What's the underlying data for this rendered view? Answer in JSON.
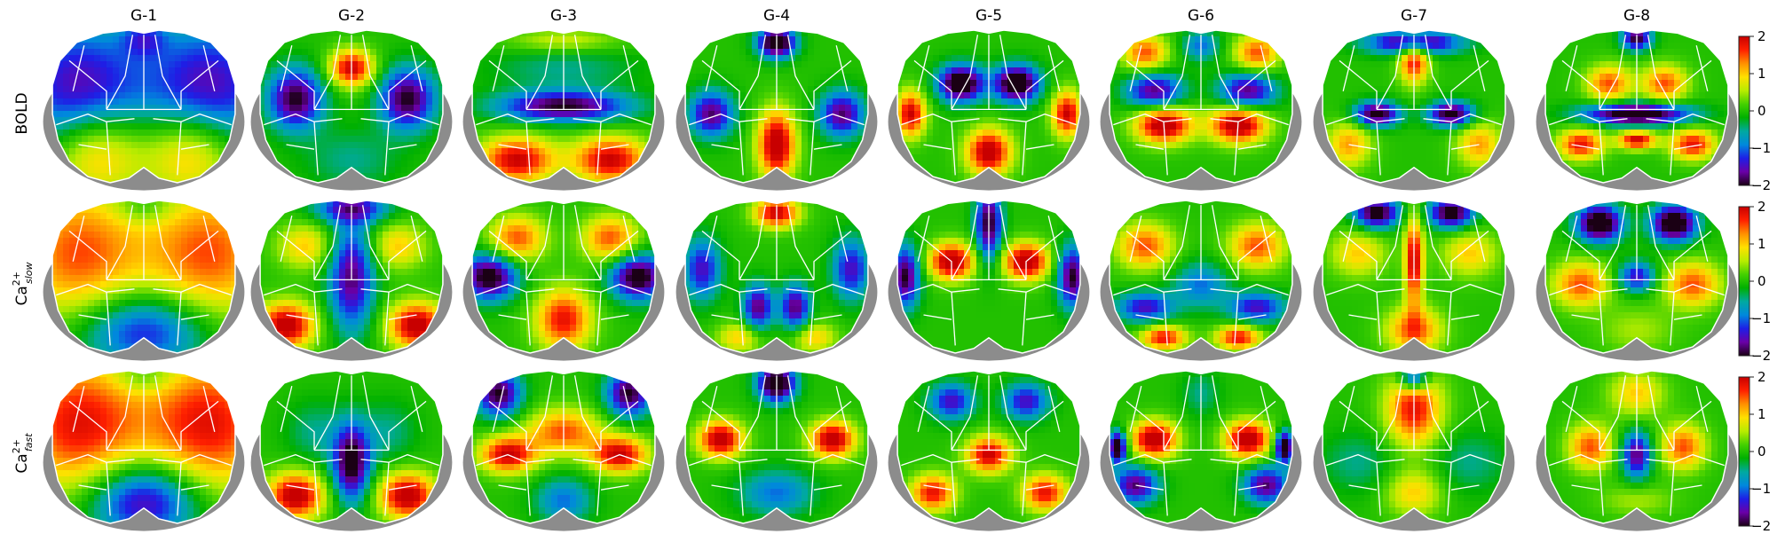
{
  "columns": [
    "G-1",
    "G-2",
    "G-3",
    "G-4",
    "G-5",
    "G-6",
    "G-7",
    "G-8"
  ],
  "rows": [
    {
      "label": "BOLD",
      "sub": "",
      "sup": ""
    },
    {
      "label": "Ca",
      "sup": "2+",
      "sub": "slow"
    },
    {
      "label": "Ca",
      "sup": "2+",
      "sub": "fast"
    }
  ],
  "colorbar": {
    "ticks": [
      "2",
      "1",
      "0",
      "−1",
      "−2"
    ],
    "range": [
      -2,
      2
    ],
    "colormap": "nipy_spectral",
    "stops": [
      "#1a0014",
      "#6a00a8",
      "#1e1ee6",
      "#0088dd",
      "#00a9a0",
      "#00b000",
      "#44d000",
      "#b8ec00",
      "#ffe000",
      "#ff9000",
      "#ff2000",
      "#c80000",
      "#d0d0d0"
    ]
  },
  "maps": [
    [
      [
        [
          0.15,
          0.38,
          -1.6,
          0.35,
          0.42
        ],
        [
          0.85,
          0.38,
          -1.6,
          0.35,
          0.42
        ],
        [
          0.5,
          0.05,
          -0.8,
          0.12,
          0.12
        ],
        [
          0.25,
          0.8,
          1.3,
          0.25,
          0.3
        ],
        [
          0.75,
          0.8,
          1.3,
          0.25,
          0.3
        ]
      ],
      [
        [
          0.5,
          0.25,
          2.0,
          0.12,
          0.12
        ],
        [
          0.2,
          0.45,
          -2.0,
          0.15,
          0.2
        ],
        [
          0.8,
          0.45,
          -2.0,
          0.15,
          0.2
        ],
        [
          0.5,
          0.85,
          -0.5,
          0.25,
          0.2
        ]
      ],
      [
        [
          0.5,
          0.25,
          -0.5,
          0.4,
          0.15
        ],
        [
          0.5,
          0.5,
          -2.0,
          0.35,
          0.1
        ],
        [
          0.25,
          0.85,
          2.0,
          0.2,
          0.15
        ],
        [
          0.75,
          0.85,
          2.0,
          0.2,
          0.15
        ],
        [
          0.5,
          0.07,
          0.7,
          0.3,
          0.08
        ]
      ],
      [
        [
          0.5,
          0.75,
          2.3,
          0.1,
          0.22
        ],
        [
          0.15,
          0.55,
          -1.8,
          0.12,
          0.15
        ],
        [
          0.85,
          0.55,
          -1.8,
          0.12,
          0.15
        ],
        [
          0.5,
          0.08,
          -2.5,
          0.1,
          0.1
        ]
      ],
      [
        [
          0.35,
          0.35,
          -2.5,
          0.12,
          0.12
        ],
        [
          0.65,
          0.35,
          -2.5,
          0.12,
          0.12
        ],
        [
          0.5,
          0.8,
          2.2,
          0.12,
          0.15
        ],
        [
          0.08,
          0.55,
          2.0,
          0.08,
          0.15
        ],
        [
          0.92,
          0.55,
          2.0,
          0.08,
          0.15
        ]
      ],
      [
        [
          0.3,
          0.62,
          2.3,
          0.15,
          0.12
        ],
        [
          0.7,
          0.62,
          2.3,
          0.15,
          0.12
        ],
        [
          0.25,
          0.4,
          -1.8,
          0.15,
          0.12
        ],
        [
          0.75,
          0.4,
          -1.8,
          0.15,
          0.12
        ],
        [
          0.5,
          0.1,
          -1.0,
          0.1,
          0.1
        ],
        [
          0.2,
          0.15,
          1.5,
          0.12,
          0.12
        ],
        [
          0.8,
          0.15,
          1.5,
          0.12,
          0.12
        ]
      ],
      [
        [
          0.3,
          0.55,
          -2.2,
          0.12,
          0.08
        ],
        [
          0.7,
          0.55,
          -2.2,
          0.12,
          0.08
        ],
        [
          0.5,
          0.08,
          -2.0,
          0.25,
          0.08
        ],
        [
          0.5,
          0.2,
          1.8,
          0.08,
          0.15
        ],
        [
          0.15,
          0.75,
          1.2,
          0.12,
          0.15
        ],
        [
          0.85,
          0.75,
          1.2,
          0.12,
          0.15
        ]
      ],
      [
        [
          0.5,
          0.55,
          -2.5,
          0.28,
          0.07
        ],
        [
          0.2,
          0.75,
          1.8,
          0.12,
          0.1
        ],
        [
          0.8,
          0.75,
          1.8,
          0.12,
          0.1
        ],
        [
          0.5,
          0.72,
          2.0,
          0.1,
          0.06
        ],
        [
          0.5,
          0.05,
          -2.0,
          0.08,
          0.08
        ],
        [
          0.35,
          0.35,
          1.5,
          0.12,
          0.12
        ],
        [
          0.65,
          0.35,
          1.5,
          0.12,
          0.12
        ]
      ]
    ],
    [
      [
        [
          0.15,
          0.35,
          1.5,
          0.35,
          0.45
        ],
        [
          0.85,
          0.35,
          1.5,
          0.35,
          0.45
        ],
        [
          0.5,
          0.85,
          -1.5,
          0.35,
          0.25
        ],
        [
          0.5,
          0.05,
          -0.5,
          0.15,
          0.1
        ]
      ],
      [
        [
          0.5,
          0.5,
          -1.8,
          0.12,
          0.35
        ],
        [
          0.15,
          0.82,
          2.2,
          0.15,
          0.15
        ],
        [
          0.85,
          0.82,
          2.2,
          0.15,
          0.15
        ],
        [
          0.5,
          0.05,
          -1.5,
          0.2,
          0.1
        ],
        [
          0.25,
          0.3,
          1.0,
          0.15,
          0.15
        ],
        [
          0.75,
          0.3,
          1.0,
          0.15,
          0.15
        ]
      ],
      [
        [
          0.1,
          0.5,
          -2.2,
          0.15,
          0.15
        ],
        [
          0.9,
          0.5,
          -2.2,
          0.15,
          0.15
        ],
        [
          0.5,
          0.78,
          1.8,
          0.15,
          0.2
        ],
        [
          0.25,
          0.25,
          1.5,
          0.15,
          0.15
        ],
        [
          0.75,
          0.25,
          1.5,
          0.15,
          0.15
        ]
      ],
      [
        [
          0.4,
          0.7,
          -1.8,
          0.08,
          0.15
        ],
        [
          0.6,
          0.7,
          -1.8,
          0.08,
          0.15
        ],
        [
          0.1,
          0.45,
          -1.5,
          0.1,
          0.2
        ],
        [
          0.9,
          0.45,
          -1.5,
          0.1,
          0.2
        ],
        [
          0.5,
          0.08,
          2.0,
          0.12,
          0.1
        ],
        [
          0.3,
          0.9,
          1.0,
          0.12,
          0.1
        ],
        [
          0.7,
          0.9,
          1.0,
          0.12,
          0.1
        ]
      ],
      [
        [
          0.3,
          0.4,
          2.3,
          0.12,
          0.12
        ],
        [
          0.7,
          0.4,
          2.3,
          0.12,
          0.12
        ],
        [
          0.5,
          0.15,
          -2.0,
          0.07,
          0.25
        ],
        [
          0.05,
          0.5,
          -2.0,
          0.08,
          0.2
        ],
        [
          0.95,
          0.5,
          -2.0,
          0.08,
          0.2
        ]
      ],
      [
        [
          0.2,
          0.3,
          1.5,
          0.15,
          0.15
        ],
        [
          0.8,
          0.3,
          1.5,
          0.15,
          0.15
        ],
        [
          0.5,
          0.55,
          -1.0,
          0.15,
          0.15
        ],
        [
          0.2,
          0.7,
          -1.5,
          0.15,
          0.1
        ],
        [
          0.8,
          0.7,
          -1.5,
          0.15,
          0.1
        ],
        [
          0.3,
          0.9,
          1.8,
          0.12,
          0.08
        ],
        [
          0.7,
          0.9,
          1.8,
          0.12,
          0.08
        ]
      ],
      [
        [
          0.5,
          0.4,
          2.0,
          0.05,
          0.3
        ],
        [
          0.3,
          0.08,
          -2.2,
          0.12,
          0.1
        ],
        [
          0.7,
          0.08,
          -2.2,
          0.12,
          0.1
        ],
        [
          0.2,
          0.35,
          1.0,
          0.15,
          0.15
        ],
        [
          0.8,
          0.35,
          1.0,
          0.15,
          0.15
        ],
        [
          0.5,
          0.85,
          1.5,
          0.15,
          0.15
        ]
      ],
      [
        [
          0.3,
          0.15,
          -2.5,
          0.12,
          0.12
        ],
        [
          0.7,
          0.15,
          -2.5,
          0.12,
          0.12
        ],
        [
          0.2,
          0.55,
          1.5,
          0.15,
          0.15
        ],
        [
          0.8,
          0.55,
          1.5,
          0.15,
          0.15
        ],
        [
          0.5,
          0.5,
          -1.5,
          0.1,
          0.1
        ],
        [
          0.5,
          0.85,
          0.5,
          0.2,
          0.15
        ]
      ]
    ],
    [
      [
        [
          0.15,
          0.35,
          1.8,
          0.35,
          0.45
        ],
        [
          0.85,
          0.35,
          1.8,
          0.35,
          0.45
        ],
        [
          0.5,
          0.85,
          -1.8,
          0.3,
          0.25
        ],
        [
          0.5,
          0.05,
          -0.5,
          0.15,
          0.1
        ]
      ],
      [
        [
          0.5,
          0.6,
          -2.2,
          0.1,
          0.25
        ],
        [
          0.2,
          0.82,
          2.2,
          0.15,
          0.15
        ],
        [
          0.8,
          0.82,
          2.2,
          0.15,
          0.15
        ],
        [
          0.3,
          0.4,
          -0.5,
          0.15,
          0.2
        ],
        [
          0.7,
          0.4,
          -0.5,
          0.15,
          0.2
        ]
      ],
      [
        [
          0.15,
          0.15,
          -2.0,
          0.12,
          0.15
        ],
        [
          0.85,
          0.15,
          -2.0,
          0.12,
          0.15
        ],
        [
          0.5,
          0.4,
          1.5,
          0.2,
          0.15
        ],
        [
          0.2,
          0.55,
          2.0,
          0.15,
          0.12
        ],
        [
          0.8,
          0.55,
          2.0,
          0.15,
          0.12
        ],
        [
          0.5,
          0.85,
          -1.0,
          0.15,
          0.15
        ]
      ],
      [
        [
          0.2,
          0.45,
          2.2,
          0.12,
          0.12
        ],
        [
          0.8,
          0.45,
          2.2,
          0.12,
          0.12
        ],
        [
          0.5,
          0.08,
          -2.5,
          0.1,
          0.12
        ],
        [
          0.5,
          0.8,
          -1.0,
          0.2,
          0.15
        ]
      ],
      [
        [
          0.5,
          0.55,
          2.0,
          0.12,
          0.12
        ],
        [
          0.2,
          0.8,
          1.8,
          0.12,
          0.12
        ],
        [
          0.8,
          0.8,
          1.8,
          0.12,
          0.12
        ],
        [
          0.3,
          0.2,
          -1.5,
          0.12,
          0.12
        ],
        [
          0.7,
          0.2,
          -1.5,
          0.12,
          0.12
        ]
      ],
      [
        [
          0.25,
          0.45,
          2.3,
          0.12,
          0.12
        ],
        [
          0.75,
          0.45,
          2.3,
          0.12,
          0.12
        ],
        [
          0.5,
          0.15,
          -0.5,
          0.1,
          0.15
        ],
        [
          0.15,
          0.75,
          -1.8,
          0.12,
          0.12
        ],
        [
          0.85,
          0.75,
          -1.8,
          0.12,
          0.12
        ],
        [
          0.05,
          0.5,
          -2.5,
          0.05,
          0.1
        ],
        [
          0.95,
          0.5,
          -2.5,
          0.05,
          0.1
        ]
      ],
      [
        [
          0.5,
          0.25,
          1.8,
          0.15,
          0.25
        ],
        [
          0.5,
          0.05,
          -1.8,
          0.08,
          0.08
        ],
        [
          0.2,
          0.6,
          -0.5,
          0.2,
          0.2
        ],
        [
          0.8,
          0.6,
          -0.5,
          0.2,
          0.2
        ],
        [
          0.5,
          0.8,
          1.0,
          0.15,
          0.15
        ]
      ],
      [
        [
          0.5,
          0.55,
          -1.8,
          0.08,
          0.15
        ],
        [
          0.25,
          0.5,
          1.5,
          0.12,
          0.15
        ],
        [
          0.75,
          0.5,
          1.5,
          0.12,
          0.15
        ],
        [
          0.5,
          0.15,
          1.0,
          0.15,
          0.15
        ],
        [
          0.5,
          0.85,
          0.5,
          0.2,
          0.1
        ]
      ]
    ]
  ]
}
